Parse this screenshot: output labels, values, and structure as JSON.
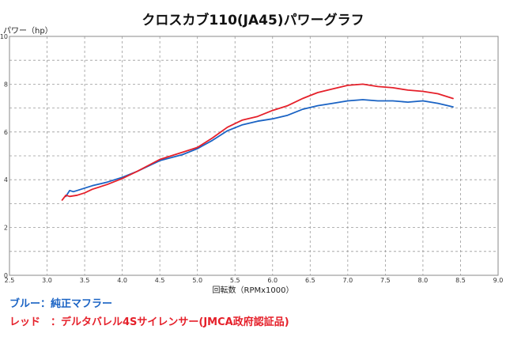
{
  "chart_data": {
    "type": "line",
    "title": "クロスカブ110(JA45)パワーグラフ",
    "ylabel": "パワー（hp）",
    "xlabel": "回転数（RPMx1000）",
    "xlim": [
      2.5,
      9.0
    ],
    "ylim": [
      0,
      10
    ],
    "x_ticks": [
      "2.5",
      "3.0",
      "3.5",
      "4.0",
      "4.5",
      "5.0",
      "5.5",
      "6.0",
      "6.5",
      "7.0",
      "7.5",
      "8.0",
      "8.5",
      "9.0"
    ],
    "y_ticks": [
      "0",
      "2",
      "4",
      "6",
      "8",
      "10"
    ],
    "grid": true,
    "series": [
      {
        "name": "ブルー：純正マフラー",
        "color": "#1a63c4",
        "x": [
          3.25,
          3.3,
          3.35,
          3.4,
          3.5,
          3.6,
          3.8,
          4.0,
          4.2,
          4.5,
          4.8,
          5.0,
          5.2,
          5.4,
          5.6,
          5.8,
          6.0,
          6.2,
          6.4,
          6.6,
          6.8,
          7.0,
          7.2,
          7.4,
          7.6,
          7.8,
          8.0,
          8.2,
          8.4
        ],
        "y": [
          3.3,
          3.55,
          3.5,
          3.55,
          3.65,
          3.75,
          3.9,
          4.1,
          4.35,
          4.8,
          5.05,
          5.3,
          5.65,
          6.05,
          6.3,
          6.45,
          6.55,
          6.7,
          6.95,
          7.1,
          7.2,
          7.3,
          7.35,
          7.3,
          7.3,
          7.25,
          7.3,
          7.2,
          7.05
        ]
      },
      {
        "name": "レッド：デルタバレル4Sサイレンサー(JMCA政府認証品)",
        "color": "#e5202a",
        "x": [
          3.2,
          3.25,
          3.3,
          3.4,
          3.5,
          3.6,
          3.8,
          4.0,
          4.2,
          4.5,
          4.8,
          5.0,
          5.2,
          5.4,
          5.6,
          5.8,
          6.0,
          6.2,
          6.4,
          6.6,
          6.8,
          7.0,
          7.2,
          7.4,
          7.6,
          7.8,
          8.0,
          8.2,
          8.4
        ],
        "y": [
          3.15,
          3.35,
          3.3,
          3.35,
          3.45,
          3.6,
          3.8,
          4.05,
          4.35,
          4.85,
          5.15,
          5.35,
          5.75,
          6.2,
          6.5,
          6.65,
          6.9,
          7.1,
          7.4,
          7.65,
          7.8,
          7.95,
          8.0,
          7.9,
          7.85,
          7.75,
          7.7,
          7.6,
          7.4
        ]
      }
    ]
  },
  "legend": {
    "blue": "ブルー：純正マフラー",
    "red": "レッド　：デルタバレル4Sサイレンサー(JMCA政府認証品)"
  }
}
